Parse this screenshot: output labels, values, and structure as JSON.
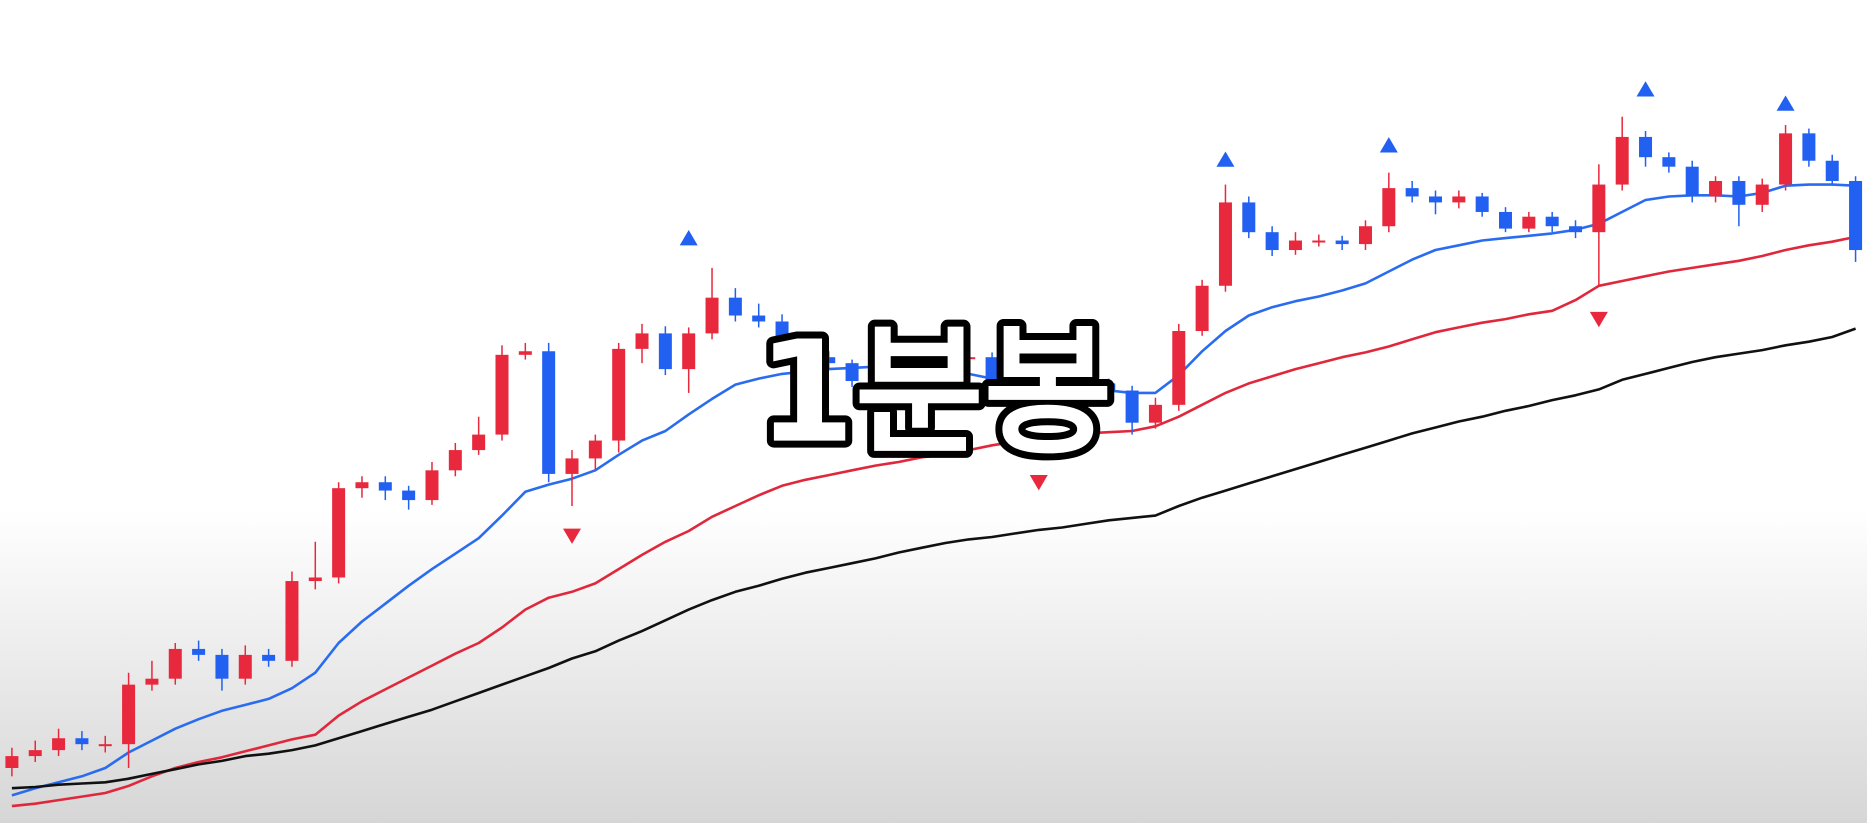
{
  "chart_data": {
    "type": "candlestick",
    "title": "1분봉",
    "ylim": [
      0,
      700
    ],
    "up_color": "#e8283c",
    "down_color": "#2160f0",
    "open": [
      55,
      65,
      70,
      80,
      75,
      75,
      125,
      130,
      155,
      150,
      130,
      150,
      145,
      212,
      215,
      290,
      295,
      288,
      280,
      305,
      322,
      335,
      402,
      405,
      302,
      315,
      330,
      407,
      420,
      390,
      420,
      450,
      435,
      430,
      402,
      400,
      395,
      380,
      385,
      395,
      380,
      400,
      400,
      370,
      360,
      355,
      365,
      378,
      372,
      345,
      360,
      422,
      460,
      530,
      505,
      490,
      498,
      498,
      495,
      510,
      542,
      535,
      530,
      535,
      522,
      508,
      518,
      510,
      505,
      545,
      585,
      568,
      560,
      535,
      548,
      528,
      545,
      588,
      565,
      548
    ],
    "high": [
      72,
      78,
      88,
      86,
      82,
      135,
      145,
      160,
      162,
      155,
      158,
      155,
      220,
      245,
      295,
      300,
      300,
      292,
      312,
      328,
      350,
      410,
      412,
      412,
      322,
      335,
      412,
      428,
      426,
      425,
      475,
      458,
      445,
      436,
      410,
      405,
      398,
      392,
      400,
      398,
      405,
      408,
      404,
      375,
      366,
      372,
      385,
      382,
      376,
      366,
      428,
      465,
      545,
      535,
      510,
      505,
      503,
      502,
      515,
      555,
      548,
      540,
      540,
      538,
      526,
      522,
      522,
      515,
      562,
      602,
      590,
      572,
      565,
      552,
      552,
      550,
      595,
      592,
      570,
      552
    ],
    "low": [
      48,
      60,
      65,
      70,
      68,
      55,
      120,
      125,
      145,
      120,
      125,
      140,
      140,
      205,
      210,
      282,
      280,
      272,
      276,
      300,
      318,
      330,
      398,
      295,
      275,
      305,
      320,
      395,
      385,
      370,
      415,
      430,
      425,
      398,
      395,
      390,
      375,
      375,
      380,
      375,
      376,
      395,
      365,
      352,
      350,
      350,
      360,
      365,
      335,
      340,
      355,
      418,
      455,
      500,
      485,
      486,
      493,
      490,
      490,
      505,
      530,
      520,
      525,
      518,
      505,
      505,
      505,
      500,
      460,
      540,
      560,
      555,
      530,
      530,
      510,
      522,
      540,
      560,
      545,
      480
    ],
    "close": [
      65,
      70,
      80,
      75,
      75,
      125,
      130,
      155,
      150,
      130,
      150,
      145,
      212,
      215,
      290,
      295,
      288,
      280,
      305,
      322,
      335,
      402,
      405,
      302,
      315,
      330,
      407,
      420,
      390,
      420,
      450,
      435,
      430,
      402,
      400,
      395,
      380,
      385,
      395,
      380,
      400,
      400,
      370,
      360,
      355,
      365,
      378,
      372,
      345,
      360,
      422,
      460,
      530,
      505,
      490,
      498,
      498,
      495,
      510,
      542,
      535,
      530,
      535,
      522,
      508,
      518,
      510,
      505,
      545,
      585,
      568,
      560,
      535,
      548,
      528,
      545,
      588,
      565,
      548,
      490
    ],
    "lines": [
      {
        "color": "#2a6cf0",
        "values": [
          32,
          38,
          43,
          48,
          55,
          68,
          78,
          88,
          96,
          103,
          108,
          113,
          122,
          135,
          160,
          178,
          193,
          208,
          222,
          235,
          248,
          267,
          287,
          293,
          298,
          305,
          318,
          330,
          338,
          352,
          365,
          377,
          382,
          386,
          388,
          390,
          391,
          392,
          392,
          390,
          388,
          386,
          382,
          378,
          375,
          375,
          374,
          372,
          370,
          370,
          385,
          405,
          422,
          435,
          442,
          447,
          451,
          456,
          462,
          472,
          482,
          490,
          494,
          498,
          500,
          502,
          504,
          507,
          512,
          522,
          532,
          535,
          536,
          536,
          535,
          538,
          544,
          545,
          545,
          544
        ]
      },
      {
        "color": "#e0283c",
        "values": [
          23,
          25,
          28,
          31,
          34,
          40,
          48,
          55,
          60,
          64,
          69,
          74,
          79,
          83,
          99,
          111,
          121,
          131,
          141,
          151,
          160,
          173,
          188,
          198,
          203,
          210,
          222,
          234,
          245,
          254,
          266,
          275,
          284,
          292,
          297,
          301,
          305,
          309,
          312,
          316,
          318,
          322,
          326,
          329,
          331,
          334,
          336,
          337,
          338,
          342,
          350,
          360,
          370,
          378,
          384,
          390,
          395,
          400,
          404,
          409,
          415,
          421,
          425,
          429,
          432,
          436,
          439,
          448,
          460,
          464,
          468,
          472,
          475,
          478,
          481,
          485,
          490,
          494,
          497,
          501
        ]
      },
      {
        "color": "#111111",
        "values": [
          38,
          39,
          41,
          42,
          43,
          46,
          50,
          54,
          58,
          61,
          65,
          67,
          70,
          74,
          80,
          86,
          92,
          98,
          104,
          111,
          118,
          125,
          132,
          139,
          147,
          153,
          162,
          170,
          179,
          188,
          196,
          203,
          208,
          214,
          219,
          223,
          227,
          231,
          236,
          240,
          244,
          247,
          249,
          252,
          255,
          257,
          260,
          263,
          265,
          267,
          275,
          282,
          288,
          294,
          300,
          306,
          312,
          318,
          324,
          330,
          336,
          341,
          346,
          350,
          355,
          359,
          364,
          368,
          373,
          381,
          386,
          391,
          396,
          400,
          403,
          406,
          410,
          413,
          417,
          424
        ]
      }
    ],
    "buy_signals": {
      "color": "#2160f0",
      "index": [
        29,
        52,
        59,
        70,
        76
      ],
      "values": [
        500,
        566,
        578,
        625,
        613
      ]
    },
    "sell_signals": {
      "color": "#e8283c",
      "index": [
        24,
        44,
        68
      ],
      "values": [
        250,
        295,
        432
      ]
    }
  }
}
